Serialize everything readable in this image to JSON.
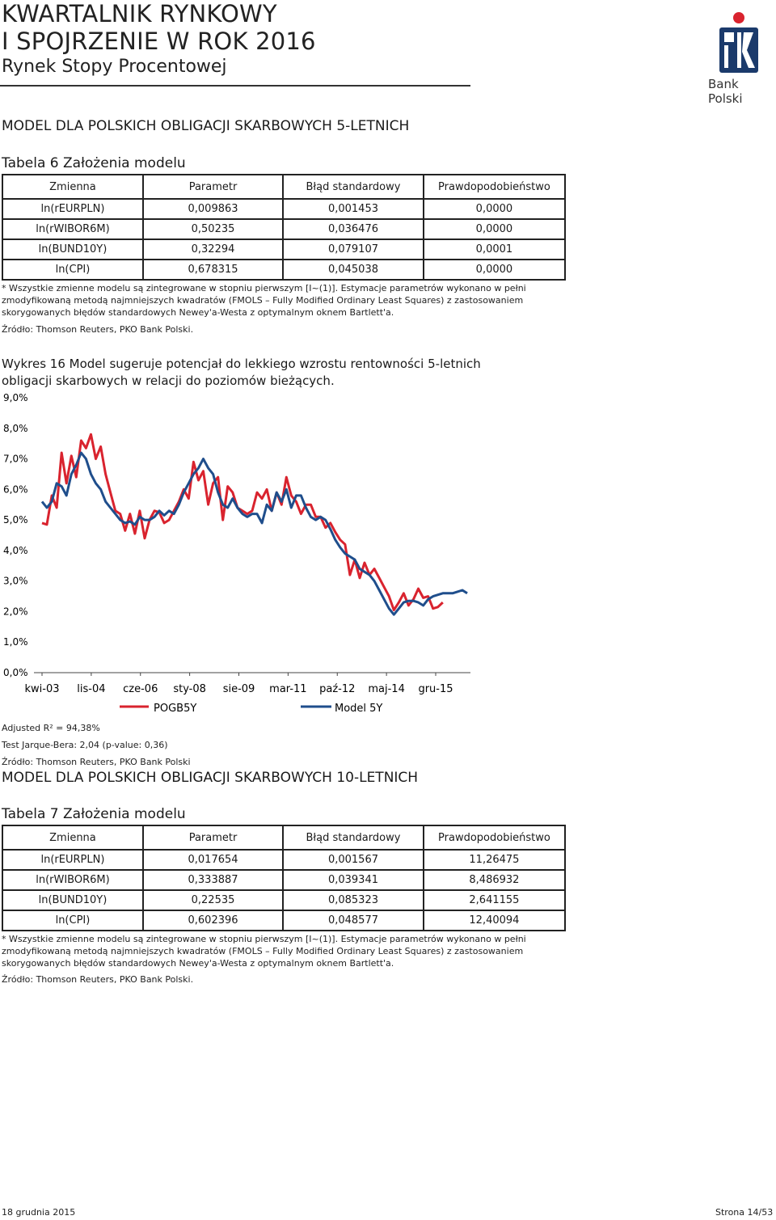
{
  "header": {
    "title_line1": "KWARTALNIK RYNKOWY",
    "title_line2": "I SPOJRZENIE W ROK 2016",
    "subtitle": "Rynek Stopy Procentowej",
    "logo_text": "Bank Polski"
  },
  "section1": {
    "title": "MODEL DLA POLSKICH OBLIGACJI SKARBOWYCH 5-LETNICH",
    "table_title": "Tabela 6 Założenia modelu",
    "columns": [
      "Zmienna",
      "Parametr",
      "Błąd standardowy",
      "Prawdopodobieństwo"
    ],
    "rows": [
      [
        "ln(rEURPLN)",
        "0,009863",
        "0,001453",
        "0,0000"
      ],
      [
        "ln(rWIBOR6M)",
        "0,50235",
        "0,036476",
        "0,0000"
      ],
      [
        "ln(BUND10Y)",
        "0,32294",
        "0,079107",
        "0,0001"
      ],
      [
        "ln(CPI)",
        "0,678315",
        "0,045038",
        "0,0000"
      ]
    ],
    "note_line1": "* Wszystkie zmienne modelu są zintegrowane w stopniu pierwszym [I~(1)]. Estymacje parametrów wykonano w pełni",
    "note_line2": "zmodyfikowaną metodą najmniejszych kwadratów (FMOLS – Fully Modified Ordinary Least Squares) z zastosowaniem",
    "note_line3": "skorygowanych błędów standardowych Newey'a-Westa z optymalnym oknem Bartlett'a.",
    "source": "Źródło: Thomson Reuters, PKO Bank Polski."
  },
  "chart": {
    "title_line1": "Wykres 16 Model sugeruje potencjał do lekkiego wzrostu rentowności 5-letnich",
    "title_line2": "obligacji skarbowych w relacji do poziomów bieżących.",
    "y_ticks": [
      "9,0%",
      "8,0%",
      "7,0%",
      "6,0%",
      "5,0%",
      "4,0%",
      "3,0%",
      "2,0%",
      "1,0%",
      "0,0%"
    ],
    "x_ticks": [
      "kwi-03",
      "lis-04",
      "cze-06",
      "sty-08",
      "sie-09",
      "mar-11",
      "paź-12",
      "maj-14",
      "gru-15"
    ],
    "adjusted_r2": "Adjusted R² = 94,38%",
    "jarque_bera": "Test Jarque-Bera: 2,04 (p-value: 0,36)",
    "source": "Źródło: Thomson Reuters, PKO Bank Polski"
  },
  "chart_data": {
    "type": "line",
    "title": "Wykres 16 Model sugeruje potencjał do lekkiego wzrostu rentowności 5-letnich obligacji skarbowych w relacji do poziomów bieżących.",
    "xlabel": "",
    "ylabel": "",
    "ylim": [
      0,
      9
    ],
    "x_tick_labels": [
      "kwi-03",
      "lis-04",
      "cze-06",
      "sty-08",
      "sie-09",
      "mar-11",
      "paź-12",
      "maj-14",
      "gru-15"
    ],
    "x_start": "2003-04",
    "x_end": "2016-03",
    "legend_position": "bottom",
    "series": [
      {
        "name": "POGB5Y",
        "color": "#d9232e",
        "values": [
          4.9,
          4.85,
          5.8,
          5.4,
          7.2,
          6.2,
          7.1,
          6.4,
          7.6,
          7.35,
          7.8,
          7.0,
          7.4,
          6.5,
          5.9,
          5.3,
          5.2,
          4.65,
          5.2,
          4.55,
          5.3,
          4.4,
          5.0,
          5.3,
          5.25,
          4.9,
          5.0,
          5.3,
          5.6,
          6.0,
          5.7,
          6.9,
          6.3,
          6.6,
          5.5,
          6.2,
          6.4,
          5.0,
          6.1,
          5.9,
          5.4,
          5.3,
          5.2,
          5.3,
          5.9,
          5.7,
          6.0,
          5.3,
          5.9,
          5.5,
          6.4,
          5.8,
          5.6,
          5.2,
          5.5,
          5.5,
          5.1,
          5.1,
          4.75,
          4.9,
          4.6,
          4.35,
          4.2,
          3.2,
          3.7,
          3.1,
          3.6,
          3.2,
          3.4,
          3.1,
          2.8,
          2.5,
          2.05,
          2.3,
          2.6,
          2.2,
          2.4,
          2.75,
          2.45,
          2.5,
          2.1,
          2.15,
          2.3
        ]
      },
      {
        "name": "Model 5Y",
        "color": "#1f4e8c",
        "values": [
          5.6,
          5.4,
          5.6,
          6.2,
          6.1,
          5.8,
          6.5,
          6.8,
          7.2,
          7.0,
          6.5,
          6.2,
          6.0,
          5.6,
          5.4,
          5.2,
          5.0,
          4.9,
          4.95,
          4.85,
          5.1,
          5.0,
          5.0,
          5.1,
          5.3,
          5.15,
          5.3,
          5.2,
          5.5,
          5.9,
          6.2,
          6.5,
          6.7,
          7.0,
          6.7,
          6.5,
          5.9,
          5.5,
          5.4,
          5.7,
          5.4,
          5.2,
          5.1,
          5.2,
          5.2,
          4.9,
          5.5,
          5.3,
          5.9,
          5.6,
          6.0,
          5.4,
          5.8,
          5.8,
          5.4,
          5.1,
          5.0,
          5.1,
          5.0,
          4.7,
          4.35,
          4.1,
          3.9,
          3.8,
          3.7,
          3.4,
          3.3,
          3.2,
          3.0,
          2.7,
          2.4,
          2.1,
          1.9,
          2.1,
          2.3,
          2.35,
          2.35,
          2.3,
          2.2,
          2.4,
          2.5,
          2.55,
          2.6,
          2.6,
          2.6,
          2.65,
          2.7,
          2.6
        ]
      }
    ]
  },
  "section2": {
    "title": "MODEL DLA POLSKICH OBLIGACJI SKARBOWYCH 10-LETNICH",
    "table_title": "Tabela 7 Założenia modelu",
    "columns": [
      "Zmienna",
      "Parametr",
      "Błąd standardowy",
      "Prawdopodobieństwo"
    ],
    "rows": [
      [
        "ln(rEURPLN)",
        "0,017654",
        "0,001567",
        "11,26475"
      ],
      [
        "ln(rWIBOR6M)",
        "0,333887",
        "0,039341",
        "8,486932"
      ],
      [
        "ln(BUND10Y)",
        "0,22535",
        "0,085323",
        "2,641155"
      ],
      [
        "ln(CPI)",
        "0,602396",
        "0,048577",
        "12,40094"
      ]
    ],
    "note_line1": "* Wszystkie zmienne modelu są zintegrowane w stopniu pierwszym [I~(1)]. Estymacje parametrów wykonano w pełni",
    "note_line2": "zmodyfikowaną metodą najmniejszych kwadratów (FMOLS – Fully Modified Ordinary Least Squares) z zastosowaniem",
    "note_line3": "skorygowanych błędów standardowych Newey'a-Westa z optymalnym oknem Bartlett'a.",
    "source": "Źródło: Thomson Reuters, PKO Bank Polski."
  },
  "footer": {
    "date": "18 grudnia 2015",
    "page": "Strona 14/53"
  },
  "colors": {
    "pogb": "#d9232e",
    "model": "#1f4e8c",
    "logo_navy": "#1b3a6b",
    "logo_red": "#d9232e"
  }
}
